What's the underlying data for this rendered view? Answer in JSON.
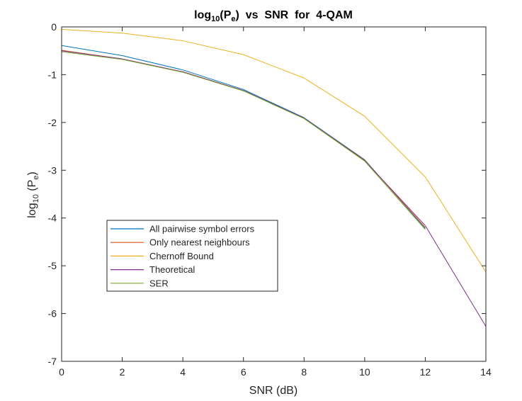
{
  "chart_data": {
    "type": "line",
    "title": {
      "main": "log",
      "sub": "10",
      "mid": "(P",
      "sub2": "e",
      "tail": ")  vs  SNR  for  4-QAM"
    },
    "xlabel": "SNR (dB)",
    "ylabel": {
      "main": "log",
      "sub": "10",
      "mid": " (P",
      "sub2": "e",
      "tail": ")"
    },
    "xlim": [
      0,
      14
    ],
    "ylim": [
      -7,
      0
    ],
    "xticks": [
      0,
      2,
      4,
      6,
      8,
      10,
      12,
      14
    ],
    "yticks": [
      0,
      -1,
      -2,
      -3,
      -4,
      -5,
      -6,
      -7
    ],
    "grid": false,
    "legend_position": "lower-left",
    "series": [
      {
        "name": "All pairwise symbol errors",
        "color": "#0072BD",
        "x": [
          0,
          2,
          4,
          6,
          8,
          10,
          12
        ],
        "y": [
          -0.39,
          -0.6,
          -0.9,
          -1.31,
          -1.9,
          -2.78,
          -4.22
        ]
      },
      {
        "name": "Only nearest neighbours",
        "color": "#D95319",
        "x": [
          0,
          2,
          4,
          6,
          8,
          10,
          12
        ],
        "y": [
          -0.49,
          -0.67,
          -0.94,
          -1.33,
          -1.91,
          -2.79,
          -4.2
        ]
      },
      {
        "name": "Chernoff Bound",
        "color": "#EDB120",
        "x": [
          0,
          2,
          4,
          6,
          8,
          10,
          12,
          14
        ],
        "y": [
          -0.05,
          -0.13,
          -0.29,
          -0.58,
          -1.07,
          -1.87,
          -3.14,
          -5.13
        ]
      },
      {
        "name": "Theoretical",
        "color": "#7E2F8E",
        "x": [
          0,
          2,
          4,
          6,
          8,
          10,
          12,
          14
        ],
        "y": [
          -0.5,
          -0.67,
          -0.94,
          -1.33,
          -1.91,
          -2.8,
          -4.16,
          -6.27
        ]
      },
      {
        "name": "SER",
        "color": "#77AC30",
        "x": [
          0,
          2,
          4,
          6,
          8,
          10,
          12
        ],
        "y": [
          -0.52,
          -0.68,
          -0.95,
          -1.34,
          -1.92,
          -2.81,
          -4.24
        ]
      }
    ]
  }
}
